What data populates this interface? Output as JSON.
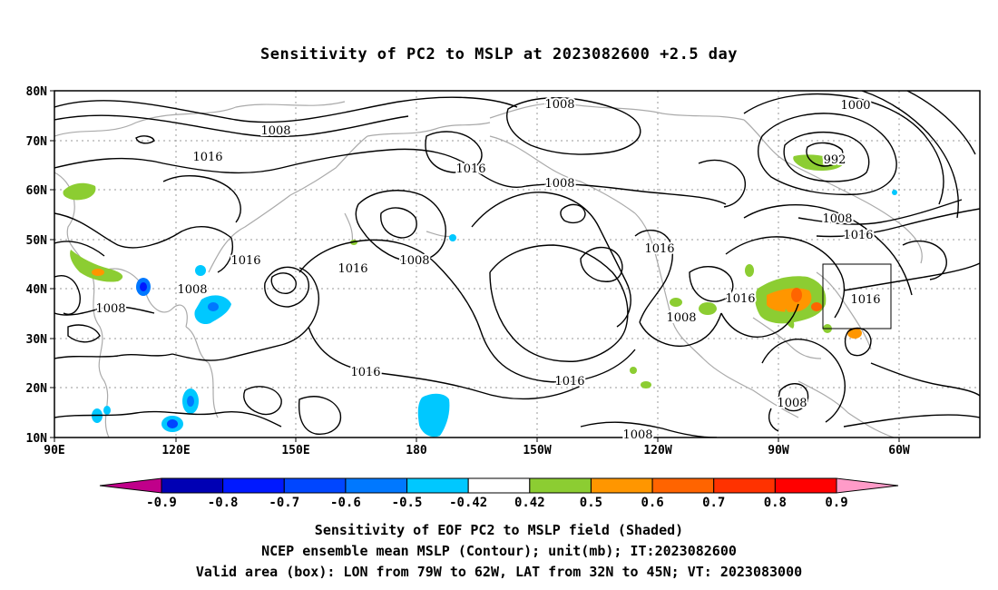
{
  "title": "Sensitivity of PC2 to MSLP at 2023082600 +2.5 day",
  "map": {
    "lat_labels": [
      "80N",
      "70N",
      "60N",
      "50N",
      "40N",
      "30N",
      "20N",
      "10N"
    ],
    "lon_labels": [
      "90E",
      "120E",
      "150E",
      "180",
      "150W",
      "120W",
      "90W",
      "60W"
    ],
    "contour_labels": [
      "1008",
      "1016",
      "1008",
      "1016",
      "1008",
      "1016",
      "1016",
      "1008",
      "1016",
      "1016",
      "1008",
      "1016",
      "1016",
      "1008",
      "1016",
      "1000",
      "992",
      "1008",
      "1016",
      "1016",
      "1008",
      "1008",
      "1008"
    ],
    "colors": {
      "coast": "#aaaaaa",
      "contour": "#000000",
      "grid": "#999999"
    }
  },
  "colorbar": {
    "labels": [
      "-0.9",
      "-0.8",
      "-0.7",
      "-0.6",
      "-0.5",
      "-0.42",
      "0.42",
      "0.5",
      "0.6",
      "0.7",
      "0.8",
      "0.9"
    ],
    "colors": [
      "#c0008a",
      "#0000b4",
      "#0019ff",
      "#0046ff",
      "#0078ff",
      "#00c8ff",
      "#ffffff",
      "#8ccd32",
      "#ff9600",
      "#ff6400",
      "#ff3200",
      "#ff0000",
      "#ff9bc8"
    ]
  },
  "captions": {
    "line1": "Sensitivity of EOF PC2 to MSLP field (Shaded)",
    "line2": "NCEP ensemble mean MSLP (Contour); unit(mb); IT:2023082600",
    "line3": "Valid area (box): LON from 79W to 62W, LAT from 32N to 45N; VT: 2023083000"
  }
}
